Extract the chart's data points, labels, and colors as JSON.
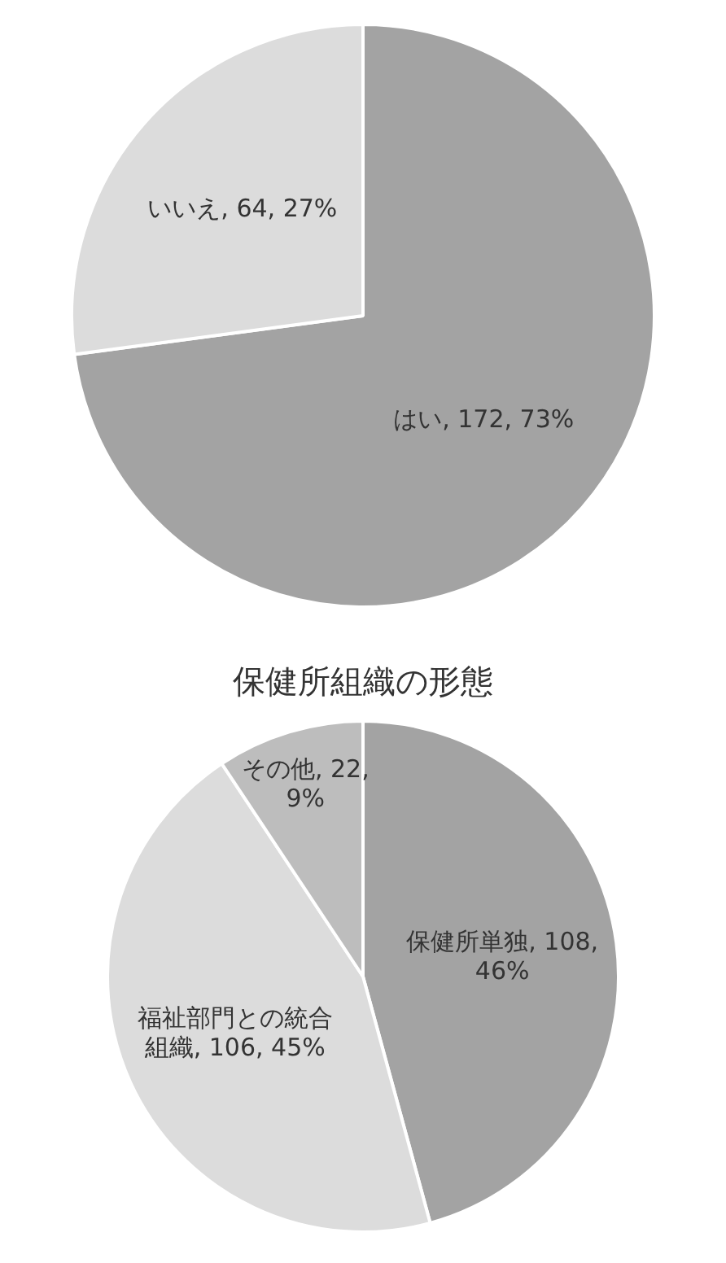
{
  "chart_data": [
    {
      "type": "pie",
      "categories": [
        "はい",
        "いいえ"
      ],
      "values": [
        172,
        64
      ],
      "value_labels": [
        "172, 73%",
        "64, 27%"
      ],
      "colors": [
        "#a3a3a3",
        "#dcdcdc"
      ],
      "legend": false
    },
    {
      "type": "pie",
      "title": "保健所組織の形態",
      "categories": [
        "保健所単独",
        "福祉部門との統合組織",
        "その他"
      ],
      "values": [
        108,
        106,
        22
      ],
      "value_labels": [
        "108, 46%",
        "106, 45%",
        "22, 9%"
      ],
      "colors": [
        "#a3a3a3",
        "#dcdcdc",
        "#bdbdbd"
      ],
      "legend": false
    }
  ]
}
